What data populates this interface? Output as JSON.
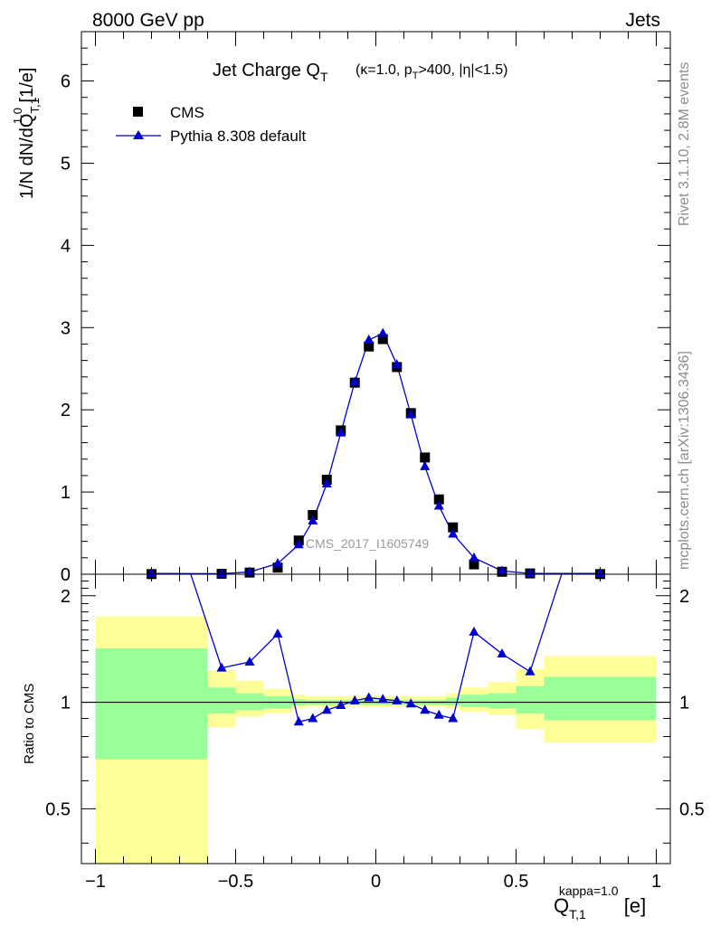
{
  "header": {
    "left": "8000 GeV pp",
    "right": "Jets"
  },
  "side_labels": {
    "top": "Rivet 3.1.10,  2.8M events",
    "bottom": "mcplots.cern.ch [arXiv:1306.3436]"
  },
  "watermark": "CMS_2017_I1605749",
  "colors": {
    "mc": "#0000cc",
    "band_inner": "#99ff99",
    "band_outer": "#ffff99",
    "data": "#000000"
  },
  "chart_data": [
    {
      "type": "scatter",
      "title": "Jet Charge Q_T (κ=1.0, p_T>400, |η|<1.5)",
      "title_main": "Jet Charge Q",
      "title_sub": "T",
      "title_detail_parts": [
        "(κ=1.0, p",
        "T",
        ">400, |η|<1.5)"
      ],
      "ylabel_parts": [
        "1/N dN/dQ",
        "T,1",
        "1.0",
        " [1/e]"
      ],
      "xlim": [
        -1.05,
        1.05
      ],
      "ylim": [
        0,
        6.6
      ],
      "yticks": [
        "0",
        "1",
        "2",
        "3",
        "4",
        "5",
        "6"
      ],
      "legend": {
        "position": "top-left",
        "entries": [
          "CMS",
          "Pythia 8.308 default"
        ]
      },
      "series": [
        {
          "name": "CMS",
          "marker": "square",
          "x": [
            -0.8,
            -0.55,
            -0.45,
            -0.35,
            -0.275,
            -0.225,
            -0.175,
            -0.125,
            -0.075,
            -0.025,
            0.025,
            0.075,
            0.125,
            0.175,
            0.225,
            0.275,
            0.35,
            0.45,
            0.55,
            0.8
          ],
          "y": [
            0.002,
            0.005,
            0.02,
            0.08,
            0.41,
            0.72,
            1.15,
            1.75,
            2.33,
            2.77,
            2.86,
            2.52,
            1.96,
            1.42,
            0.91,
            0.57,
            0.12,
            0.03,
            0.01,
            0.002
          ]
        },
        {
          "name": "Pythia 8.308 default",
          "marker": "triangle",
          "x": [
            -0.8,
            -0.55,
            -0.45,
            -0.35,
            -0.275,
            -0.225,
            -0.175,
            -0.125,
            -0.075,
            -0.025,
            0.025,
            0.075,
            0.125,
            0.175,
            0.225,
            0.275,
            0.35,
            0.45,
            0.55,
            0.8
          ],
          "y": [
            0.01,
            0.006,
            0.028,
            0.13,
            0.36,
            0.65,
            1.1,
            1.72,
            2.34,
            2.85,
            2.93,
            2.55,
            1.94,
            1.31,
            0.83,
            0.49,
            0.2,
            0.04,
            0.01,
            0.01
          ]
        }
      ]
    },
    {
      "type": "line",
      "ylabel": "Ratio to CMS",
      "xlabel_parts": [
        "Q",
        "T,1",
        "kappa=1.0",
        " [e]"
      ],
      "xlim": [
        -1.05,
        1.05
      ],
      "ylim": [
        0.35,
        2.3
      ],
      "log_y": true,
      "yticks": [
        {
          "value": 0.5,
          "label": "0.5"
        },
        {
          "value": 1,
          "label": "1"
        },
        {
          "value": 2,
          "label": "2"
        }
      ],
      "xticks": [
        {
          "value": -1,
          "label": "−1"
        },
        {
          "value": -0.5,
          "label": "−0.5"
        },
        {
          "value": 0,
          "label": "0"
        },
        {
          "value": 0.5,
          "label": "0.5"
        },
        {
          "value": 1,
          "label": "1"
        }
      ],
      "reference_line": 1,
      "bands": [
        {
          "x0": -1.0,
          "x1": -0.6,
          "outer": [
            0.35,
            1.75
          ],
          "inner": [
            0.69,
            1.42
          ]
        },
        {
          "x0": -0.6,
          "x1": -0.5,
          "outer": [
            0.85,
            1.23
          ],
          "inner": [
            0.93,
            1.1
          ]
        },
        {
          "x0": -0.5,
          "x1": -0.4,
          "outer": [
            0.91,
            1.15
          ],
          "inner": [
            0.95,
            1.06
          ]
        },
        {
          "x0": -0.4,
          "x1": -0.3,
          "outer": [
            0.93,
            1.09
          ],
          "inner": [
            0.96,
            1.04
          ]
        },
        {
          "x0": -0.3,
          "x1": -0.25,
          "outer": [
            0.96,
            1.05
          ],
          "inner": [
            0.98,
            1.02
          ]
        },
        {
          "x0": -0.25,
          "x1": 0.25,
          "outer": [
            0.97,
            1.04
          ],
          "inner": [
            0.985,
            1.015
          ]
        },
        {
          "x0": 0.25,
          "x1": 0.3,
          "outer": [
            0.96,
            1.06
          ],
          "inner": [
            0.98,
            1.03
          ]
        },
        {
          "x0": 0.3,
          "x1": 0.4,
          "outer": [
            0.94,
            1.1
          ],
          "inner": [
            0.97,
            1.05
          ]
        },
        {
          "x0": 0.4,
          "x1": 0.5,
          "outer": [
            0.92,
            1.14
          ],
          "inner": [
            0.96,
            1.06
          ]
        },
        {
          "x0": 0.5,
          "x1": 0.6,
          "outer": [
            0.84,
            1.24
          ],
          "inner": [
            0.93,
            1.11
          ]
        },
        {
          "x0": 0.6,
          "x1": 1.0,
          "outer": [
            0.77,
            1.35
          ],
          "inner": [
            0.89,
            1.18
          ]
        }
      ],
      "series": [
        {
          "name": "Pythia 8.308 default",
          "marker": "triangle",
          "x": [
            -0.8,
            -0.55,
            -0.45,
            -0.35,
            -0.275,
            -0.225,
            -0.175,
            -0.125,
            -0.075,
            -0.025,
            0.025,
            0.075,
            0.125,
            0.175,
            0.225,
            0.275,
            0.35,
            0.45,
            0.55,
            0.8
          ],
          "y": [
            5.0,
            1.25,
            1.3,
            1.56,
            0.88,
            0.9,
            0.95,
            0.98,
            1.01,
            1.03,
            1.02,
            1.01,
            0.99,
            0.95,
            0.92,
            0.9,
            1.58,
            1.37,
            1.22,
            5.0
          ]
        }
      ]
    }
  ]
}
